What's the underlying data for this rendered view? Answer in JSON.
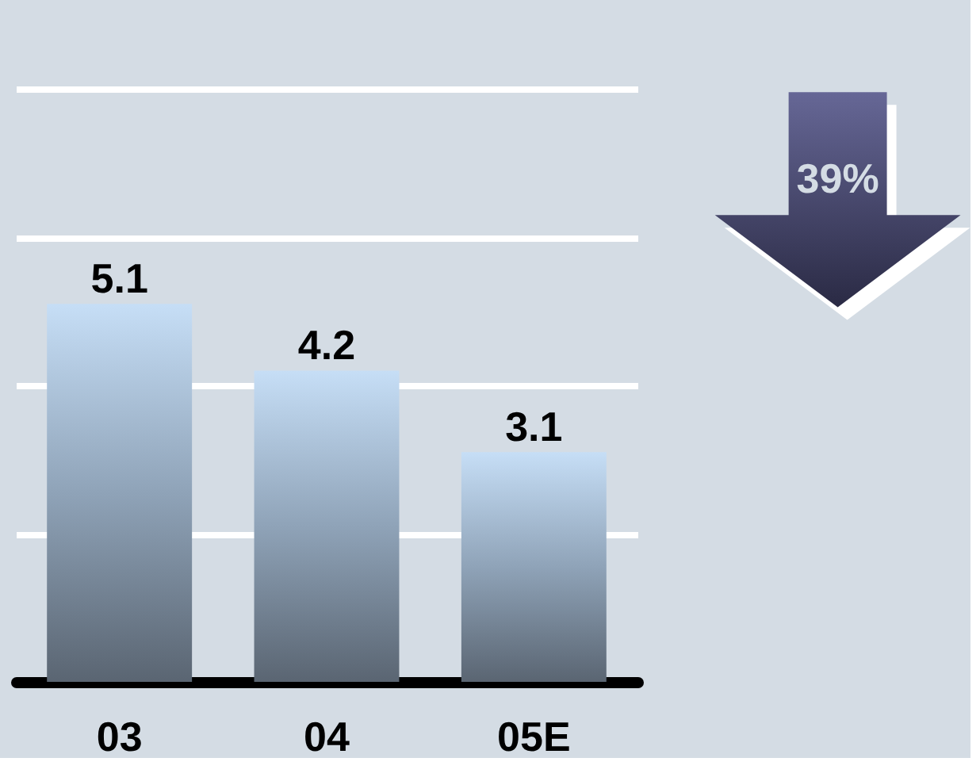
{
  "chart_data": {
    "type": "bar",
    "categories": [
      "03",
      "04",
      "05E"
    ],
    "values": [
      5.1,
      4.2,
      3.1
    ],
    "color": "#8fa3b8",
    "data_labels": true,
    "ylim": [
      0,
      9.2
    ],
    "yticks": [
      {
        "value": 2,
        "label": null
      },
      {
        "value": 4,
        "label": null
      },
      {
        "value": 6,
        "label": null
      },
      {
        "value": 8,
        "label": null
      }
    ],
    "grid": "y",
    "tick_labels": "x",
    "annotations": [
      "39%"
    ]
  }
}
